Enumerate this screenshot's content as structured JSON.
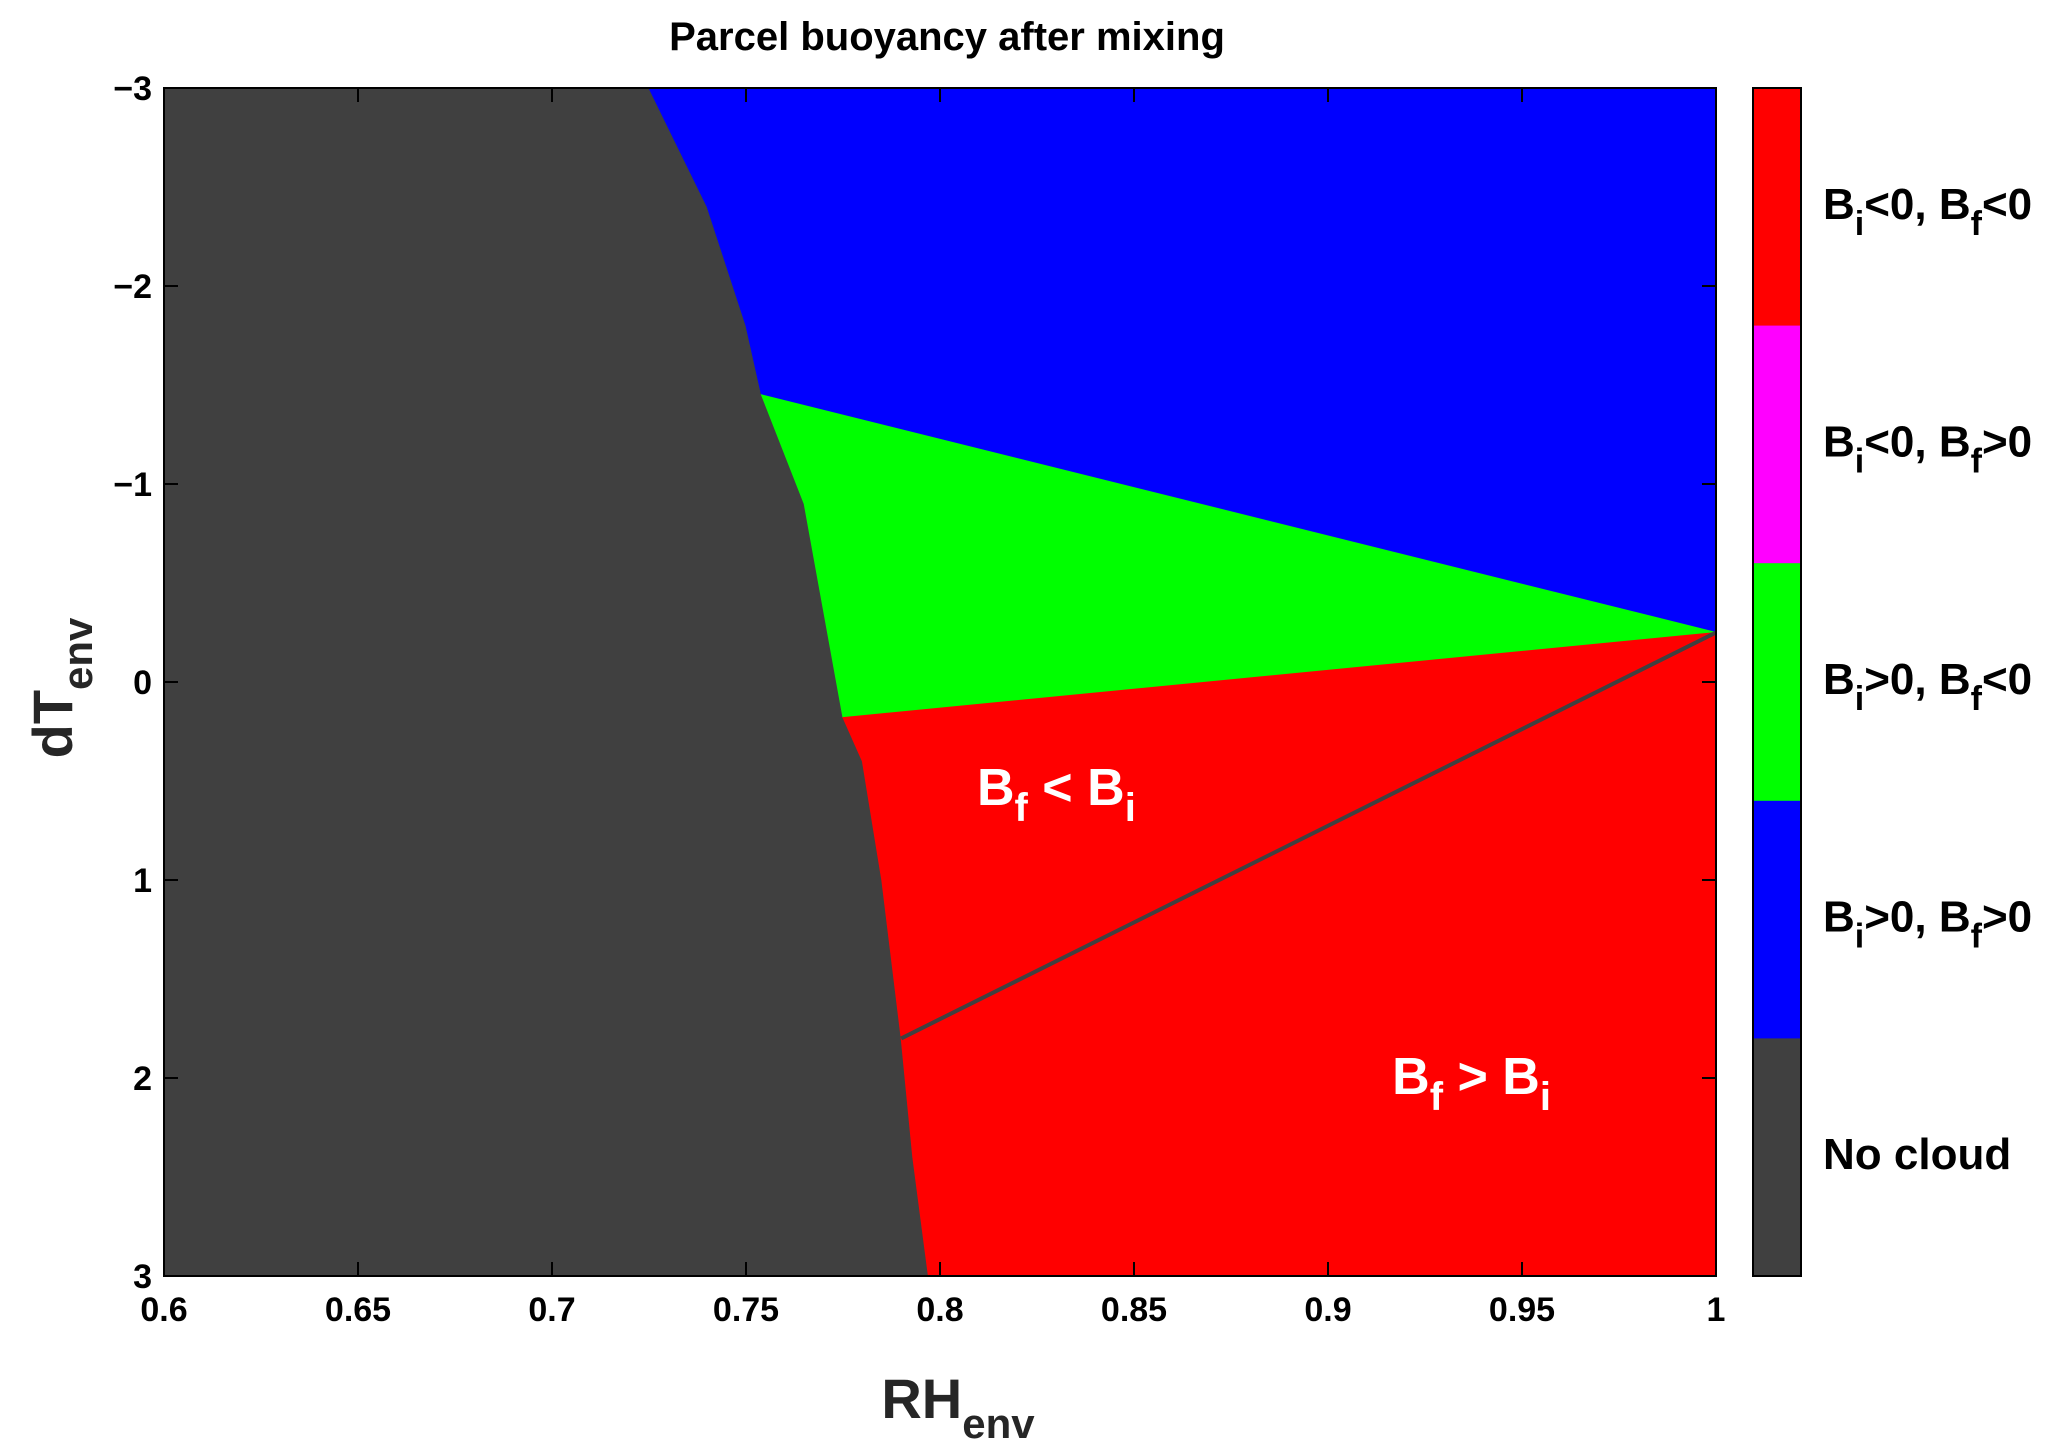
{
  "chart_data": {
    "type": "heatmap",
    "title": "Parcel buoyancy after mixing",
    "xlabel": {
      "main": "RH",
      "sub": "env"
    },
    "ylabel": {
      "main": "dT",
      "sub": "env"
    },
    "xlim": [
      0.6,
      1.0
    ],
    "ylim": [
      3,
      -3
    ],
    "y_reversed": true,
    "x_ticks": [
      "0.6",
      "0.65",
      "0.7",
      "0.75",
      "0.8",
      "0.85",
      "0.9",
      "0.95",
      "1"
    ],
    "x_tick_values": [
      0.6,
      0.65,
      0.7,
      0.75,
      0.8,
      0.85,
      0.9,
      0.95,
      1.0
    ],
    "y_ticks": [
      "−3",
      "−2",
      "−1",
      "0",
      "1",
      "2",
      "3"
    ],
    "y_tick_values": [
      -3,
      -2,
      -1,
      0,
      1,
      2,
      3
    ],
    "grid": false,
    "categories": [
      {
        "parts": [
          [
            "B",
            ""
          ],
          [
            "i",
            "sub"
          ],
          [
            "<0, B",
            ""
          ],
          [
            "f",
            "sub"
          ],
          [
            "<0",
            ""
          ]
        ],
        "color": "#ff0000"
      },
      {
        "parts": [
          [
            "B",
            ""
          ],
          [
            "i",
            "sub"
          ],
          [
            "<0, B",
            ""
          ],
          [
            "f",
            "sub"
          ],
          [
            ">0",
            ""
          ]
        ],
        "color": "#ff00ff"
      },
      {
        "parts": [
          [
            "B",
            ""
          ],
          [
            "i",
            "sub"
          ],
          [
            ">0, B",
            ""
          ],
          [
            "f",
            "sub"
          ],
          [
            "<0",
            ""
          ]
        ],
        "color": "#00ff00"
      },
      {
        "parts": [
          [
            "B",
            ""
          ],
          [
            "i",
            "sub"
          ],
          [
            ">0, B",
            ""
          ],
          [
            "f",
            "sub"
          ],
          [
            ">0",
            ""
          ]
        ],
        "color": "#0000ff"
      },
      {
        "parts": [
          [
            "No cloud",
            ""
          ]
        ],
        "color": "#404040"
      }
    ],
    "regions": [
      {
        "name": "no-cloud",
        "category": 4,
        "polygon": [
          [
            0.6,
            -3
          ],
          [
            0.725,
            -3
          ],
          [
            0.73,
            -2.8
          ],
          [
            0.74,
            -2.4
          ],
          [
            0.75,
            -1.8
          ],
          [
            0.754,
            -1.45
          ],
          [
            0.765,
            -0.9
          ],
          [
            0.775,
            -0.2
          ],
          [
            0.78,
            0.4
          ],
          [
            0.785,
            1.0
          ],
          [
            0.79,
            1.8
          ],
          [
            0.793,
            2.4
          ],
          [
            0.797,
            3.0
          ],
          [
            0.6,
            3.0
          ]
        ]
      },
      {
        "name": "both-buoyant",
        "category": 3,
        "polygon": [
          [
            0.725,
            -3
          ],
          [
            1.0,
            -3
          ],
          [
            1.0,
            -0.25
          ],
          [
            0.754,
            -1.45
          ],
          [
            0.75,
            -1.8
          ],
          [
            0.74,
            -2.4
          ],
          [
            0.73,
            -2.8
          ]
        ]
      },
      {
        "name": "initially-buoyant-finally-not",
        "category": 2,
        "polygon": [
          [
            0.754,
            -1.45
          ],
          [
            1.0,
            -0.25
          ],
          [
            0.775,
            0.18
          ],
          [
            0.765,
            -0.9
          ]
        ]
      },
      {
        "name": "both-negative",
        "category": 0,
        "polygon": [
          [
            0.775,
            0.18
          ],
          [
            1.0,
            -0.25
          ],
          [
            1.0,
            3.0
          ],
          [
            0.797,
            3.0
          ],
          [
            0.793,
            2.4
          ],
          [
            0.79,
            1.8
          ],
          [
            0.785,
            1.0
          ],
          [
            0.78,
            0.4
          ]
        ]
      }
    ],
    "divider_line": {
      "from": [
        0.79,
        1.8
      ],
      "to": [
        1.0,
        -0.25
      ],
      "color": "#404040"
    },
    "annotations": [
      {
        "parts": [
          [
            "B",
            ""
          ],
          [
            "f",
            "sub"
          ],
          [
            " < B",
            ""
          ],
          [
            "i",
            "sub"
          ]
        ],
        "x": 0.83,
        "y": 0.62
      },
      {
        "parts": [
          [
            "B",
            ""
          ],
          [
            "f",
            "sub"
          ],
          [
            " > B",
            ""
          ],
          [
            "i",
            "sub"
          ]
        ],
        "x": 0.937,
        "y": 2.08
      }
    ]
  }
}
